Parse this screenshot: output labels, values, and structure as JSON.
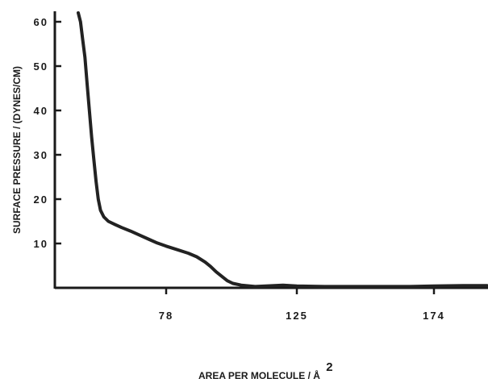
{
  "chart_data": {
    "type": "line",
    "title": "",
    "xlabel": "AREA PER MOLECULE / Å",
    "xlabel_superscript": "2",
    "ylabel": "SURFACE PRESSURE / (DYNES/CM)",
    "x_ticks": [
      "78",
      "125",
      "174"
    ],
    "y_ticks": [
      "10",
      "20",
      "30",
      "40",
      "50",
      "60"
    ],
    "y_tick_values": [
      10,
      20,
      30,
      40,
      50,
      60
    ],
    "grid": false,
    "series": [
      {
        "color": "#222222",
        "points": [
          [
            38.5,
            62
          ],
          [
            39.5,
            60
          ],
          [
            40.5,
            56
          ],
          [
            41.5,
            52
          ],
          [
            42.5,
            46
          ],
          [
            43.5,
            40
          ],
          [
            44.5,
            34
          ],
          [
            45.5,
            29
          ],
          [
            46.5,
            24
          ],
          [
            47.5,
            20
          ],
          [
            48.5,
            17.5
          ],
          [
            50,
            16
          ],
          [
            52,
            15
          ],
          [
            55,
            14.3
          ],
          [
            58,
            13.6
          ],
          [
            62,
            12.8
          ],
          [
            66,
            11.9
          ],
          [
            70,
            11
          ],
          [
            74,
            10.1
          ],
          [
            78,
            9.4
          ],
          [
            82,
            8.6
          ],
          [
            86,
            7.8
          ],
          [
            89,
            7
          ],
          [
            92,
            5.8
          ],
          [
            94,
            4.8
          ],
          [
            96,
            3.6
          ],
          [
            98,
            2.6
          ],
          [
            100,
            1.6
          ],
          [
            102,
            1
          ],
          [
            105,
            0.6
          ],
          [
            110,
            0.3
          ],
          [
            120,
            0.6
          ],
          [
            125,
            0.4
          ],
          [
            135,
            0.3
          ],
          [
            150,
            0.3
          ],
          [
            165,
            0.3
          ],
          [
            174,
            0.4
          ],
          [
            180,
            0.5
          ],
          [
            185,
            0.5
          ]
        ]
      }
    ]
  }
}
